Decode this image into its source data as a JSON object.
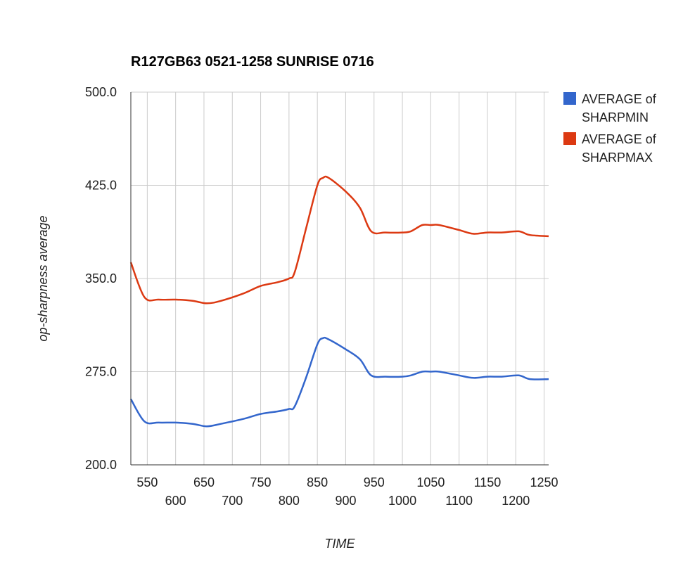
{
  "chart_data": {
    "type": "line",
    "title": "R127GB63 0521-1258 SUNRISE 0716",
    "xlabel": "TIME",
    "ylabel": "op-sharpness average",
    "xlim": [
      521,
      1258
    ],
    "ylim": [
      200,
      500
    ],
    "y_ticks": [
      "200.0",
      "275.0",
      "350.0",
      "425.0",
      "500.0"
    ],
    "y_tick_values": [
      200,
      275,
      350,
      425,
      500
    ],
    "x_ticks_row1": [
      "550",
      "650",
      "750",
      "850",
      "950",
      "1050",
      "1150",
      "1250"
    ],
    "x_ticks_row1_values": [
      550,
      650,
      750,
      850,
      950,
      1050,
      1150,
      1250
    ],
    "x_ticks_row2": [
      "600",
      "700",
      "800",
      "900",
      "1000",
      "1100",
      "1200"
    ],
    "x_ticks_row2_values": [
      600,
      700,
      800,
      900,
      1000,
      1100,
      1200
    ],
    "grid": true,
    "legend_position": "right",
    "series": [
      {
        "name": "AVERAGE of SHARPMIN",
        "color": "#3366cc",
        "x": [
          521,
          545,
          570,
          600,
          630,
          655,
          680,
          720,
          750,
          780,
          800,
          810,
          830,
          850,
          860,
          870,
          900,
          925,
          945,
          970,
          1000,
          1015,
          1035,
          1050,
          1065,
          1100,
          1125,
          1150,
          1175,
          1205,
          1225,
          1258
        ],
        "values": [
          253,
          235,
          234,
          234,
          233,
          231,
          233,
          237,
          241,
          243,
          245,
          247,
          270,
          297,
          302,
          301,
          293,
          285,
          272,
          271,
          271,
          272,
          275,
          275,
          275,
          272,
          270,
          271,
          271,
          272,
          269,
          269
        ]
      },
      {
        "name": "AVERAGE of SHARPMAX",
        "color": "#dc3912",
        "x": [
          521,
          545,
          570,
          600,
          630,
          655,
          680,
          720,
          750,
          780,
          800,
          810,
          830,
          850,
          860,
          870,
          900,
          925,
          945,
          970,
          1000,
          1015,
          1035,
          1050,
          1065,
          1100,
          1125,
          1150,
          1175,
          1205,
          1225,
          1258
        ],
        "values": [
          363,
          335,
          333,
          333,
          332,
          330,
          332,
          338,
          344,
          347,
          350,
          355,
          390,
          425,
          431,
          431,
          420,
          407,
          388,
          387,
          387,
          388,
          393,
          393,
          393,
          389,
          386,
          387,
          387,
          388,
          385,
          384
        ]
      }
    ]
  }
}
